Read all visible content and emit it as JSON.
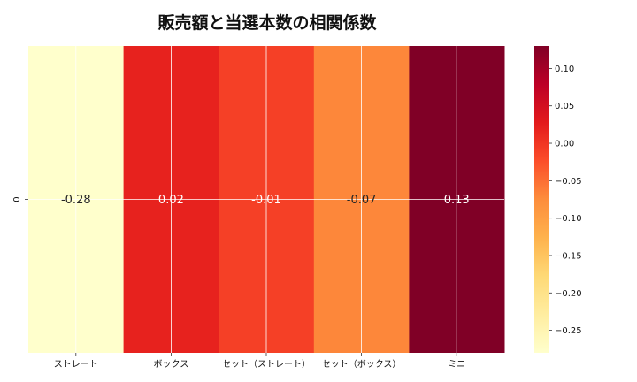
{
  "chart_data": {
    "type": "heatmap",
    "title": "販売額と当選本数の相関係数",
    "row_labels": [
      "0"
    ],
    "categories": [
      "ストレート",
      "ボックス",
      "セット（ストレート）",
      "セット（ボックス）",
      "ミニ"
    ],
    "values": [
      [
        -0.28,
        0.02,
        -0.01,
        -0.07,
        0.13
      ]
    ],
    "value_labels": [
      "-0.28",
      "0.02",
      "-0.01",
      "-0.07",
      "0.13"
    ],
    "colorbar": {
      "min": -0.28,
      "max": 0.13,
      "ticks": [
        0.1,
        0.05,
        0.0,
        -0.05,
        -0.1,
        -0.15,
        -0.2,
        -0.25
      ],
      "tick_labels": [
        "0.10",
        "0.05",
        "0.00",
        "−0.05",
        "−0.10",
        "−0.15",
        "−0.20",
        "−0.25"
      ],
      "colormap": "YlOrRd"
    },
    "grid": true,
    "colors": {
      "cmap_stops": [
        "#ffffcc",
        "#ffeda0",
        "#fed976",
        "#feb24c",
        "#fd8d3c",
        "#fc4e2a",
        "#e31a1c",
        "#bd0026",
        "#800026"
      ],
      "grid_line": "#ffffff",
      "label_dark": "#262626",
      "label_light": "#ffffff"
    }
  }
}
